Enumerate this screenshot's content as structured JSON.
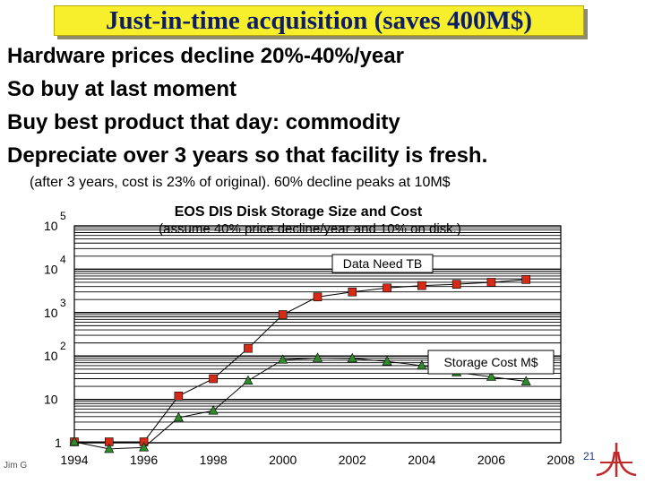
{
  "slide": {
    "title": "Just-in-time acquisition (saves 400M$)",
    "bullets": [
      "Hardware prices decline 20%-40%/year",
      "So buy at last moment",
      "Buy best product that day: commodity",
      "Depreciate over 3 years so that facility is fresh."
    ],
    "note": "(after 3 years, cost is 23% of original).  60% decline peaks at 10M$",
    "footer_author": "Jim G",
    "page_number": "21"
  },
  "chart_data": {
    "type": "line",
    "title": "EOS DIS Disk  Storage Size and Cost",
    "subtitle": "(assume 40% price decline/year and 10% on disk.)",
    "xlabel": "",
    "ylabel": "",
    "y_scale": "log",
    "xlim": [
      1994,
      2008
    ],
    "ylim": [
      1,
      100000
    ],
    "x_ticks": [
      "1994",
      "1996",
      "1998",
      "2000",
      "2002",
      "2004",
      "2006",
      "2008"
    ],
    "y_ticks": [
      {
        "base": "",
        "exp": "",
        "label": "1"
      },
      {
        "base": "10",
        "exp": "",
        "label": "10"
      },
      {
        "base": "10",
        "exp": "2",
        "label": "10^2"
      },
      {
        "base": "10",
        "exp": "3",
        "label": "10^3"
      },
      {
        "base": "10",
        "exp": "4",
        "label": "10^4"
      },
      {
        "base": "10",
        "exp": "5",
        "label": "10^5"
      }
    ],
    "grid": "horizontal",
    "series": [
      {
        "name": "Data Need TB",
        "marker": "square",
        "color": "#d42a16",
        "x": [
          1994,
          1995,
          1996,
          1997,
          1998,
          1999,
          2000,
          2001,
          2002,
          2003,
          2004,
          2005,
          2006,
          2007
        ],
        "y": [
          1.05,
          1.05,
          1.05,
          12,
          30,
          150,
          900,
          2300,
          3000,
          3700,
          4200,
          4500,
          5000,
          5800
        ]
      },
      {
        "name": "Storage Cost M$",
        "marker": "triangle",
        "color": "#2f8a2a",
        "x": [
          1994,
          1995,
          1996,
          1997,
          1998,
          1999,
          2000,
          2001,
          2002,
          2003,
          2004,
          2005,
          2006,
          2007
        ],
        "y": [
          1.05,
          0.72,
          0.78,
          3.8,
          5.5,
          27,
          82,
          90,
          88,
          75,
          60,
          42,
          33,
          26
        ]
      }
    ]
  }
}
